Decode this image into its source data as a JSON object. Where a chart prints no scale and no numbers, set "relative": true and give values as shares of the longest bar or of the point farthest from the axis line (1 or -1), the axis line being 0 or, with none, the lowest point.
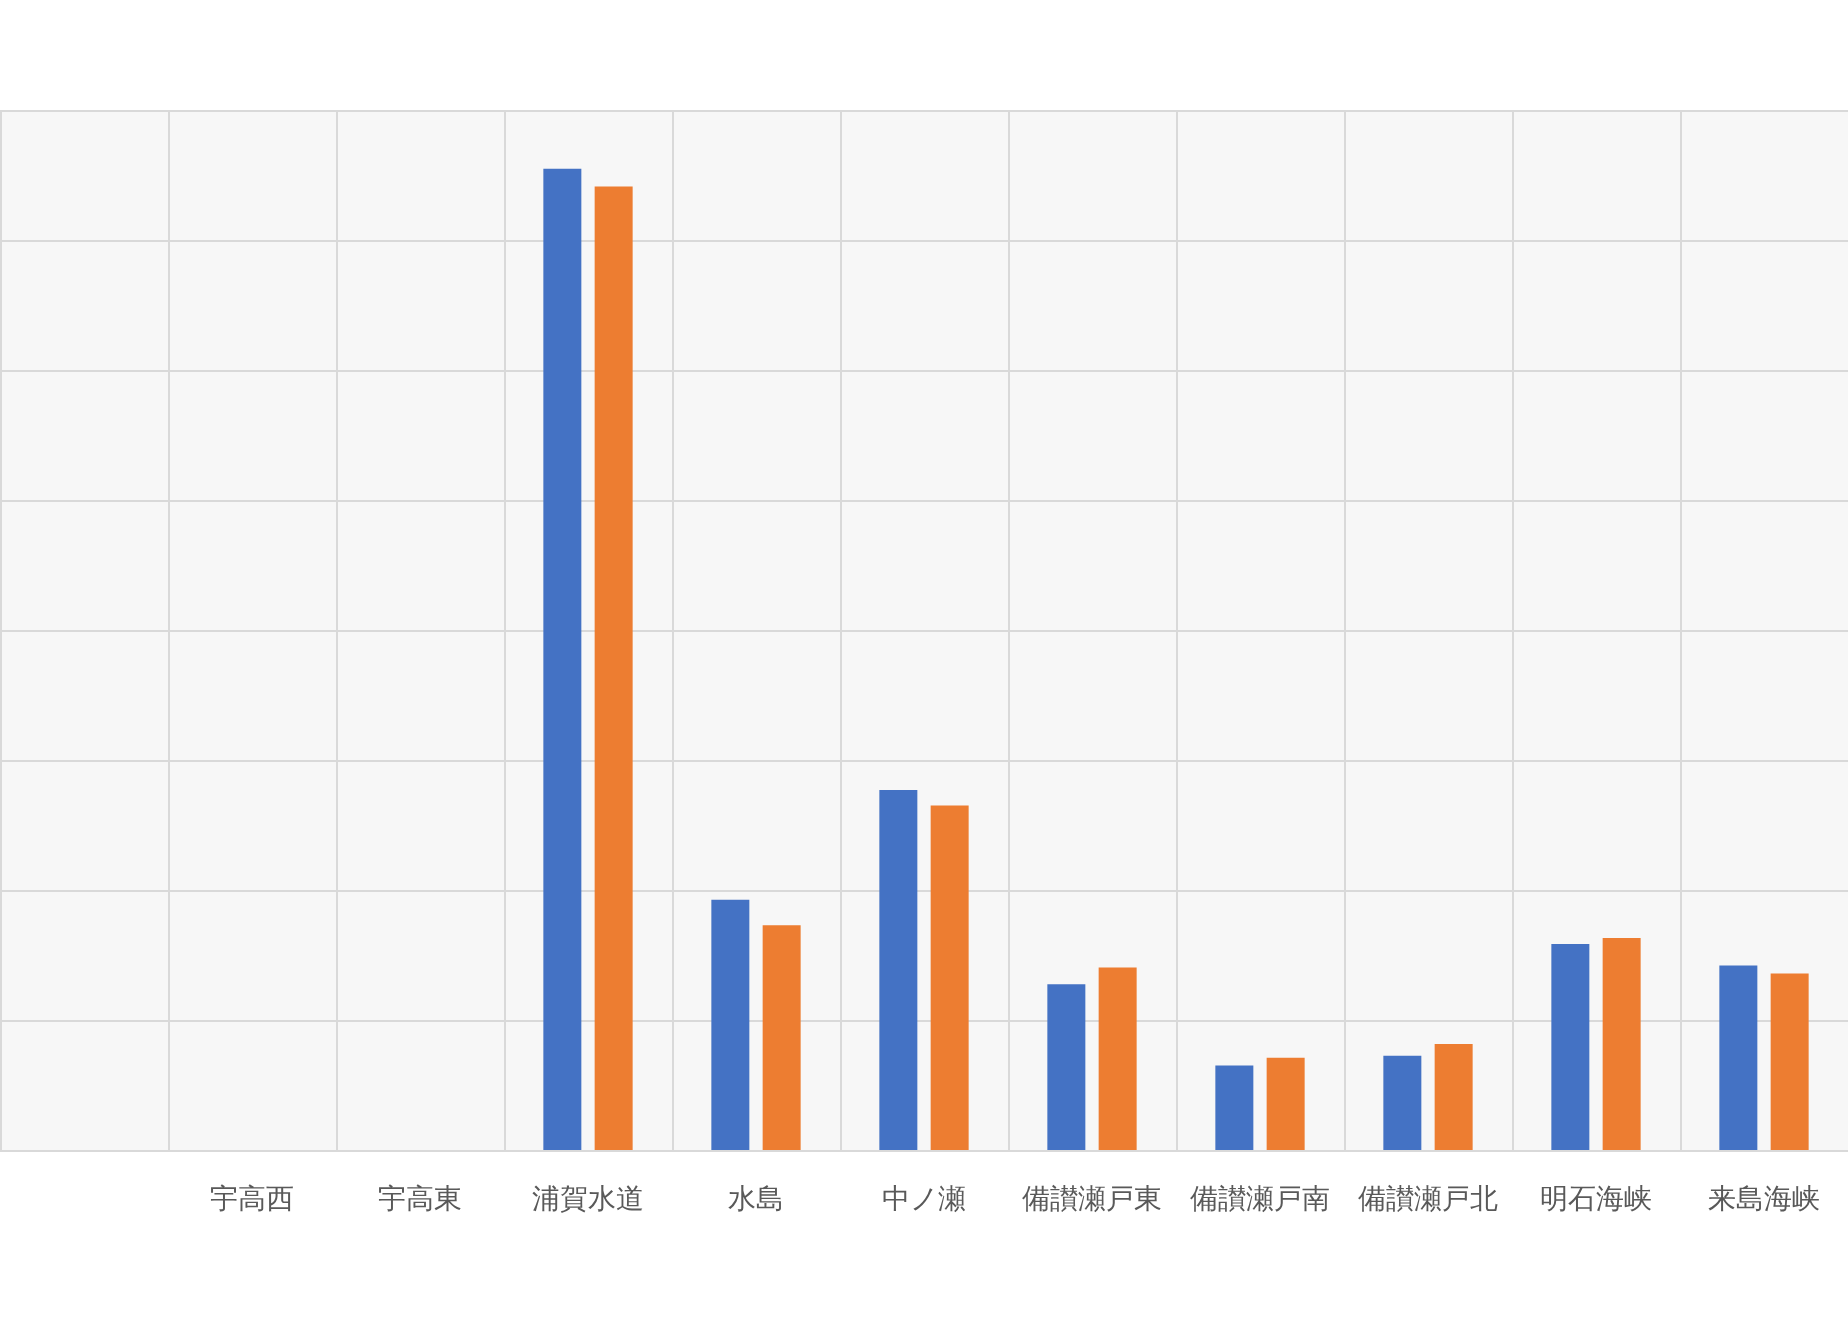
{
  "chart_data": {
    "type": "bar",
    "relative": true,
    "grid": true,
    "categories": [
      null,
      "宇高西",
      "宇高東",
      "浦賀水道",
      "水島",
      "中ノ瀬",
      "備讃瀬戸東",
      "備讃瀬戸南",
      "備讃瀬戸北",
      "明石海峡",
      "来島海峡"
    ],
    "series": [
      {
        "color": "#4472c4",
        "values": [
          null,
          0,
          0,
          1,
          0.255,
          0.367,
          0.169,
          0.086,
          0.096,
          0.21,
          0.188
        ]
      },
      {
        "color": "#ed7d31",
        "values": [
          null,
          0,
          0,
          0.982,
          0.229,
          0.351,
          0.186,
          0.094,
          0.108,
          0.216,
          0.18
        ]
      }
    ]
  }
}
